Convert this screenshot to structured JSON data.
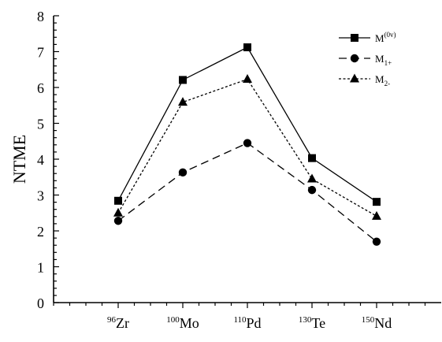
{
  "chart_data": {
    "type": "line",
    "ylabel": "NTME",
    "xlabel": "",
    "ylim": [
      0,
      8
    ],
    "yticks": [
      "0",
      "1",
      "2",
      "3",
      "4",
      "5",
      "6",
      "7",
      "8"
    ],
    "categories": [
      {
        "mass": "96",
        "element": "Zr"
      },
      {
        "mass": "100",
        "element": "Mo"
      },
      {
        "mass": "110",
        "element": "Pd"
      },
      {
        "mass": "130",
        "element": "Te"
      },
      {
        "mass": "150",
        "element": "Nd"
      }
    ],
    "series": [
      {
        "name": "M(0v)",
        "label_base": "M",
        "label_sup": "(0v)",
        "label_sub": "",
        "marker": "square",
        "dash": "solid",
        "values": [
          2.84,
          6.21,
          7.12,
          4.03,
          2.81
        ]
      },
      {
        "name": "M1+",
        "label_base": "M",
        "label_sup": "",
        "label_sub": "1+",
        "marker": "circle",
        "dash": "dashed",
        "values": [
          2.28,
          3.63,
          4.45,
          3.14,
          1.7
        ]
      },
      {
        "name": "M2-",
        "label_base": "M",
        "label_sup": "",
        "label_sub": "2-",
        "marker": "triangle",
        "dash": "dotted",
        "values": [
          2.5,
          5.59,
          6.23,
          3.45,
          2.41
        ]
      }
    ],
    "legend_position": "top-right",
    "grid": false
  }
}
